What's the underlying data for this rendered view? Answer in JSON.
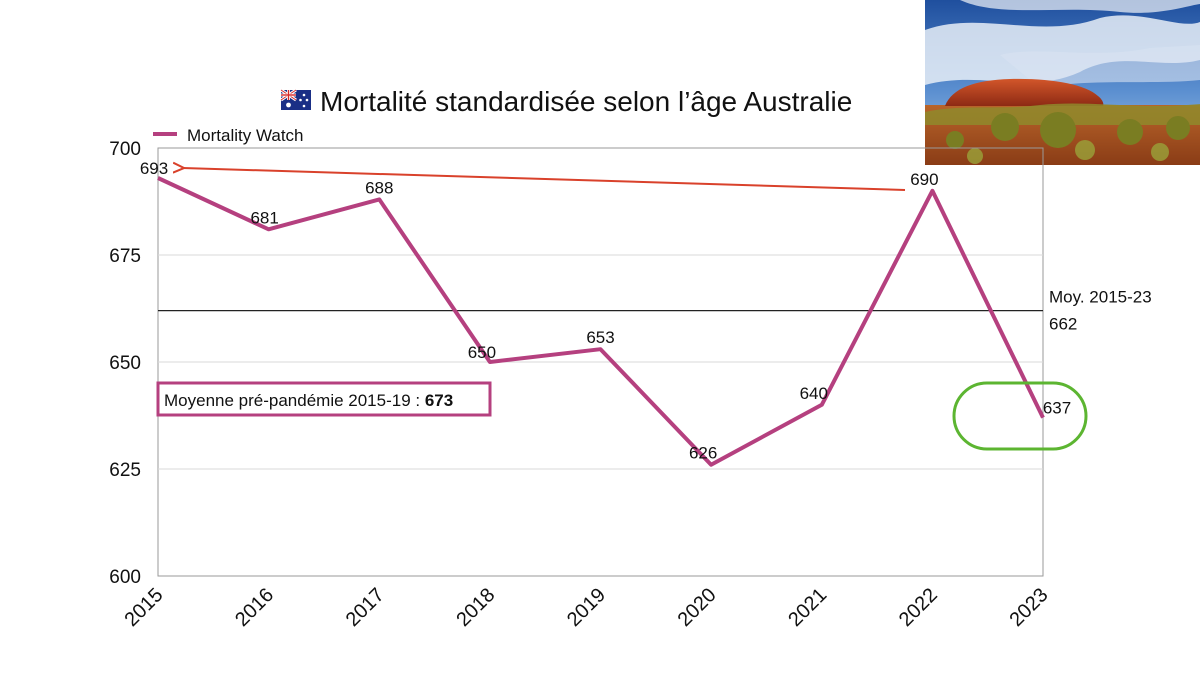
{
  "chart_data": {
    "type": "line",
    "title": "Mortalité standardisée selon l’âge Australie",
    "title_icon": "australia-flag-icon",
    "x": [
      "2015",
      "2016",
      "2017",
      "2018",
      "2019",
      "2020",
      "2021",
      "2022",
      "2023"
    ],
    "series": [
      {
        "name": "Mortality Watch",
        "values": [
          693,
          681,
          688,
          650,
          653,
          626,
          640,
          690,
          637
        ],
        "color": "#b5407f"
      }
    ],
    "yticks": [
      "600",
      "625",
      "650",
      "675",
      "700"
    ],
    "ylim": [
      600,
      700
    ],
    "grid": "horizontal",
    "legend": "top-left",
    "average_line": {
      "value": 662,
      "label": "Moy. 2015-23",
      "value_label": "662",
      "color": "#222222"
    },
    "annotations": {
      "pre_pandemic_label": "Moyenne pré-pandémie 2015-19 : ",
      "pre_pandemic_value": "673",
      "box_color": "#b5407f",
      "arrow_color": "#d9412b",
      "highlight_color": "#5cb531"
    }
  },
  "photo": {
    "icon": "uluru-landscape-photo"
  }
}
